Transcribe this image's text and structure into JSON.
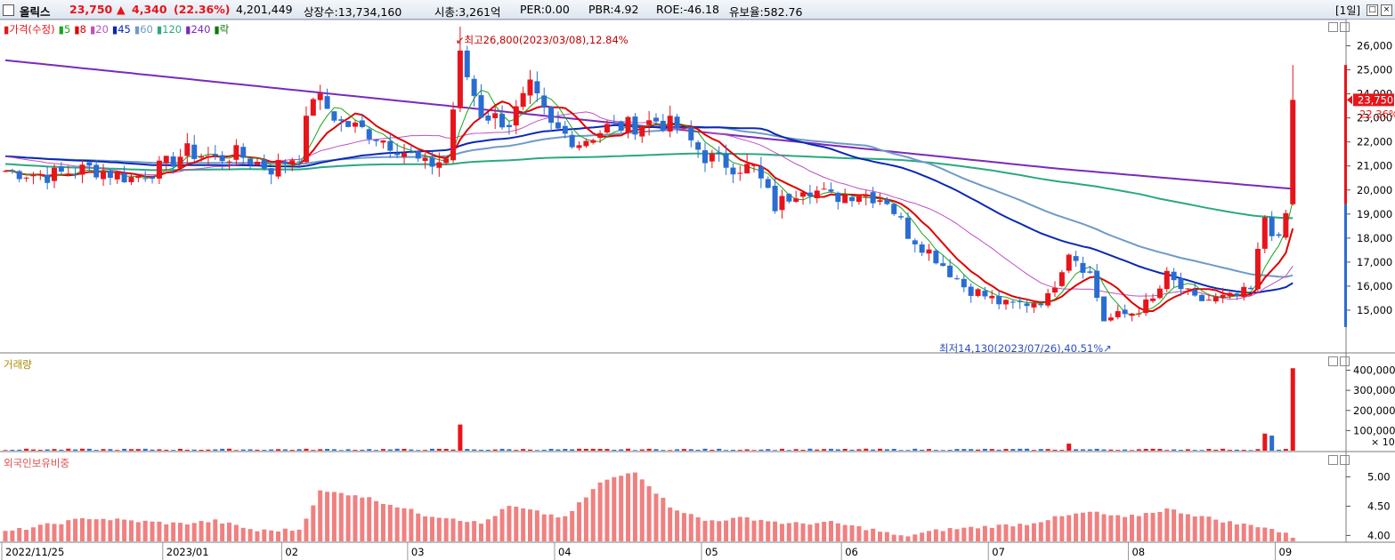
{
  "header": {
    "name": "올릭스",
    "price": "23,750",
    "arrow": "▲",
    "change": "4,340",
    "change_pct": "(22.36%)",
    "volume": "4,201,449",
    "listed": "상장수:13,734,160",
    "mcap": "시총:3,261억",
    "per": "PER:0.00",
    "pbr": "PBR:4.92",
    "roe": "ROE:-46.18",
    "reserve": "유보율:582.76",
    "period": "[1일]",
    "btn_restore": "□",
    "btn_close": "×"
  },
  "colors": {
    "up": "#e8141b",
    "down": "#2a6dd2",
    "ma5": "#1aa61a",
    "ma8": "#e00000",
    "ma20": "#c050c0",
    "ma45": "#0a28b4",
    "ma60": "#6e9ac8",
    "ma120": "#2aa880",
    "ma240": "#7a2aba",
    "foreign": "#f08080"
  },
  "price_panel": {
    "legend": [
      {
        "label": "가격(수정)",
        "color": "#e8141b"
      },
      {
        "label": "5",
        "color": "#1aa61a"
      },
      {
        "label": "8",
        "color": "#e00000"
      },
      {
        "label": "20",
        "color": "#c050c0"
      },
      {
        "label": "45",
        "color": "#0a28b4"
      },
      {
        "label": "60",
        "color": "#6e9ac8"
      },
      {
        "label": "120",
        "color": "#2aa880"
      },
      {
        "label": "240",
        "color": "#7a2aba"
      },
      {
        "label": "락",
        "color": "#0a7a0a"
      }
    ],
    "max_annotation": "최고26,800(2023/03/08),12.84%",
    "min_annotation": "최저14,130(2023/07/26),40.51%",
    "ticks": [
      "26,000",
      "25,000",
      "24,000",
      "23,000",
      "22,000",
      "21,000",
      "20,000",
      "19,000",
      "18,000",
      "17,000",
      "16,000",
      "15,000"
    ],
    "current_price_label": "23,750",
    "current_pct_label": "22.36%"
  },
  "volume_panel": {
    "legend": "거래량",
    "ticks": [
      "400,000",
      "300,000",
      "200,000",
      "100,000"
    ],
    "unit": "× 10"
  },
  "foreign_panel": {
    "legend": "외국인보유비중",
    "ticks": [
      "5.00",
      "4.50",
      "4.00"
    ]
  },
  "x_labels": [
    "2022/11/25",
    "2023/01",
    "02",
    "03",
    "04",
    "05",
    "06",
    "07",
    "08",
    "09"
  ],
  "chart_data": {
    "type": "candlestick",
    "ylim": [
      14000,
      27000
    ],
    "x_month_indices": [
      0,
      23,
      40,
      58,
      79,
      100,
      120,
      141,
      161,
      182
    ],
    "note_source": "approximate values read from chart",
    "price_anchors": [
      [
        0,
        20800
      ],
      [
        6,
        20600
      ],
      [
        12,
        20900
      ],
      [
        18,
        20500
      ],
      [
        22,
        20900
      ],
      [
        26,
        21600
      ],
      [
        30,
        21300
      ],
      [
        33,
        21500
      ],
      [
        38,
        20900
      ],
      [
        42,
        21500
      ],
      [
        44,
        24000
      ],
      [
        48,
        22800
      ],
      [
        52,
        22400
      ],
      [
        56,
        21800
      ],
      [
        60,
        21000
      ],
      [
        63,
        21300
      ],
      [
        65,
        25500
      ],
      [
        68,
        23200
      ],
      [
        72,
        22800
      ],
      [
        75,
        24200
      ],
      [
        78,
        22600
      ],
      [
        82,
        22000
      ],
      [
        86,
        22600
      ],
      [
        90,
        22700
      ],
      [
        93,
        22900
      ],
      [
        96,
        22600
      ],
      [
        100,
        21400
      ],
      [
        104,
        21000
      ],
      [
        107,
        20900
      ],
      [
        110,
        19300
      ],
      [
        114,
        20200
      ],
      [
        118,
        19700
      ],
      [
        122,
        19900
      ],
      [
        126,
        19600
      ],
      [
        129,
        18200
      ],
      [
        133,
        17200
      ],
      [
        137,
        16000
      ],
      [
        140,
        15600
      ],
      [
        143,
        15200
      ],
      [
        146,
        15300
      ],
      [
        149,
        15500
      ],
      [
        152,
        17500
      ],
      [
        155,
        16500
      ],
      [
        157,
        14600
      ],
      [
        161,
        14900
      ],
      [
        164,
        15400
      ],
      [
        166,
        16400
      ],
      [
        170,
        15400
      ],
      [
        175,
        15500
      ],
      [
        178,
        15800
      ],
      [
        180,
        18900
      ],
      [
        182,
        17800
      ],
      [
        183,
        19000
      ],
      [
        184,
        23750
      ]
    ],
    "foreign_anchors": [
      [
        0,
        4.06
      ],
      [
        12,
        4.3
      ],
      [
        18,
        4.25
      ],
      [
        25,
        4.2
      ],
      [
        30,
        4.25
      ],
      [
        36,
        4.08
      ],
      [
        42,
        4.1
      ],
      [
        45,
        4.75
      ],
      [
        50,
        4.7
      ],
      [
        56,
        4.5
      ],
      [
        60,
        4.35
      ],
      [
        64,
        4.3
      ],
      [
        68,
        4.2
      ],
      [
        72,
        4.5
      ],
      [
        76,
        4.4
      ],
      [
        80,
        4.3
      ],
      [
        85,
        4.9
      ],
      [
        90,
        5.1
      ],
      [
        95,
        4.5
      ],
      [
        100,
        4.25
      ],
      [
        106,
        4.3
      ],
      [
        112,
        4.2
      ],
      [
        118,
        4.22
      ],
      [
        124,
        4.1
      ],
      [
        128,
        3.98
      ],
      [
        134,
        4.1
      ],
      [
        140,
        4.15
      ],
      [
        146,
        4.2
      ],
      [
        150,
        4.3
      ],
      [
        155,
        4.4
      ],
      [
        160,
        4.3
      ],
      [
        166,
        4.45
      ],
      [
        172,
        4.3
      ],
      [
        176,
        4.2
      ],
      [
        180,
        4.15
      ],
      [
        184,
        3.98
      ]
    ],
    "volume_spikes": [
      [
        65,
        130000
      ],
      [
        152,
        35000
      ],
      [
        180,
        85000
      ],
      [
        181,
        75000
      ],
      [
        184,
        410000
      ]
    ],
    "volume_ylim": [
      0,
      420000
    ],
    "foreign_ylim": [
      3.9,
      5.25
    ]
  }
}
